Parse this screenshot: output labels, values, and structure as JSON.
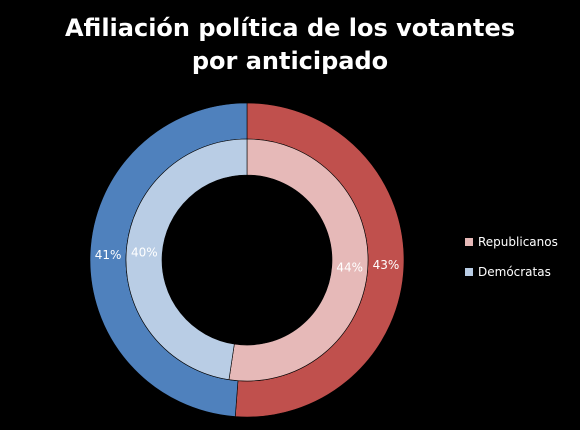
{
  "chart_data": {
    "type": "pie",
    "subtype": "doughnut",
    "title": "Afiliación política de los votantes por anticipado",
    "categories": [
      "Republicanos",
      "Demócratas"
    ],
    "series": [
      {
        "ring": "inner",
        "values": [
          44,
          40
        ],
        "labels": [
          "44%",
          "40%"
        ],
        "colors": [
          "#e6b9b8",
          "#b9cde5"
        ]
      },
      {
        "ring": "outer",
        "values": [
          43,
          41
        ],
        "labels": [
          "43%",
          "41%"
        ],
        "colors": [
          "#c0504d",
          "#4f81bd"
        ]
      }
    ],
    "legend": {
      "position": "right",
      "entries": [
        {
          "label": "Republicanos",
          "color": "#e6b9b8"
        },
        {
          "label": "Demócratas",
          "color": "#b9cde5"
        }
      ]
    }
  }
}
